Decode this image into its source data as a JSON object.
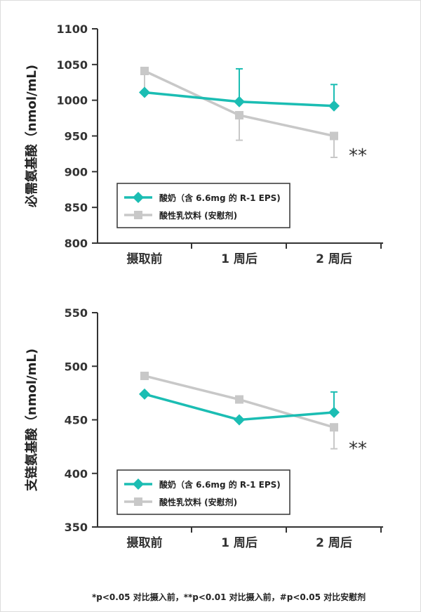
{
  "chart_data": [
    {
      "type": "line",
      "ylabel": "必需氨基酸（nmol/mL)",
      "categories": [
        "摄取前",
        "1 周后",
        "2 周后"
      ],
      "ylim": [
        800,
        1100
      ],
      "yticks": [
        800,
        850,
        900,
        950,
        1000,
        1050,
        1100
      ],
      "series": [
        {
          "name": "酸奶（含 6.6mg 的 R-1 EPS)",
          "color": "#1bbdb3",
          "marker": "diamond",
          "values": [
            1011,
            998,
            992
          ],
          "err_upper": [
            null,
            1044,
            1022
          ],
          "err_lower": [
            null,
            null,
            null
          ]
        },
        {
          "name": "酸性乳饮料 (安慰剂)",
          "color": "#c8c8c8",
          "marker": "square",
          "values": [
            1041,
            979,
            950
          ],
          "err_upper": [
            null,
            null,
            null
          ],
          "err_lower": [
            1011,
            944,
            920
          ]
        }
      ],
      "annotation": "**",
      "legend": "bottom-left"
    },
    {
      "type": "line",
      "ylabel": "支链氨基酸（nmol/mL)",
      "categories": [
        "摄取前",
        "1 周后",
        "2 周后"
      ],
      "ylim": [
        350,
        550
      ],
      "yticks": [
        350,
        400,
        450,
        500,
        550
      ],
      "series": [
        {
          "name": "酸奶（含 6.6mg 的 R-1 EPS)",
          "color": "#1bbdb3",
          "marker": "diamond",
          "values": [
            474,
            450,
            457
          ],
          "err_upper": [
            null,
            null,
            476
          ],
          "err_lower": [
            null,
            null,
            null
          ]
        },
        {
          "name": "酸性乳饮料 (安慰剂)",
          "color": "#c8c8c8",
          "marker": "square",
          "values": [
            491,
            469,
            443
          ],
          "err_upper": [
            null,
            null,
            null
          ],
          "err_lower": [
            null,
            null,
            423
          ]
        }
      ],
      "annotation": "**",
      "legend": "bottom-left"
    }
  ],
  "footnote": "*p<0.05 对比摄入前，**p<0.01 对比摄入前，#p<0.05 对比安慰剂"
}
